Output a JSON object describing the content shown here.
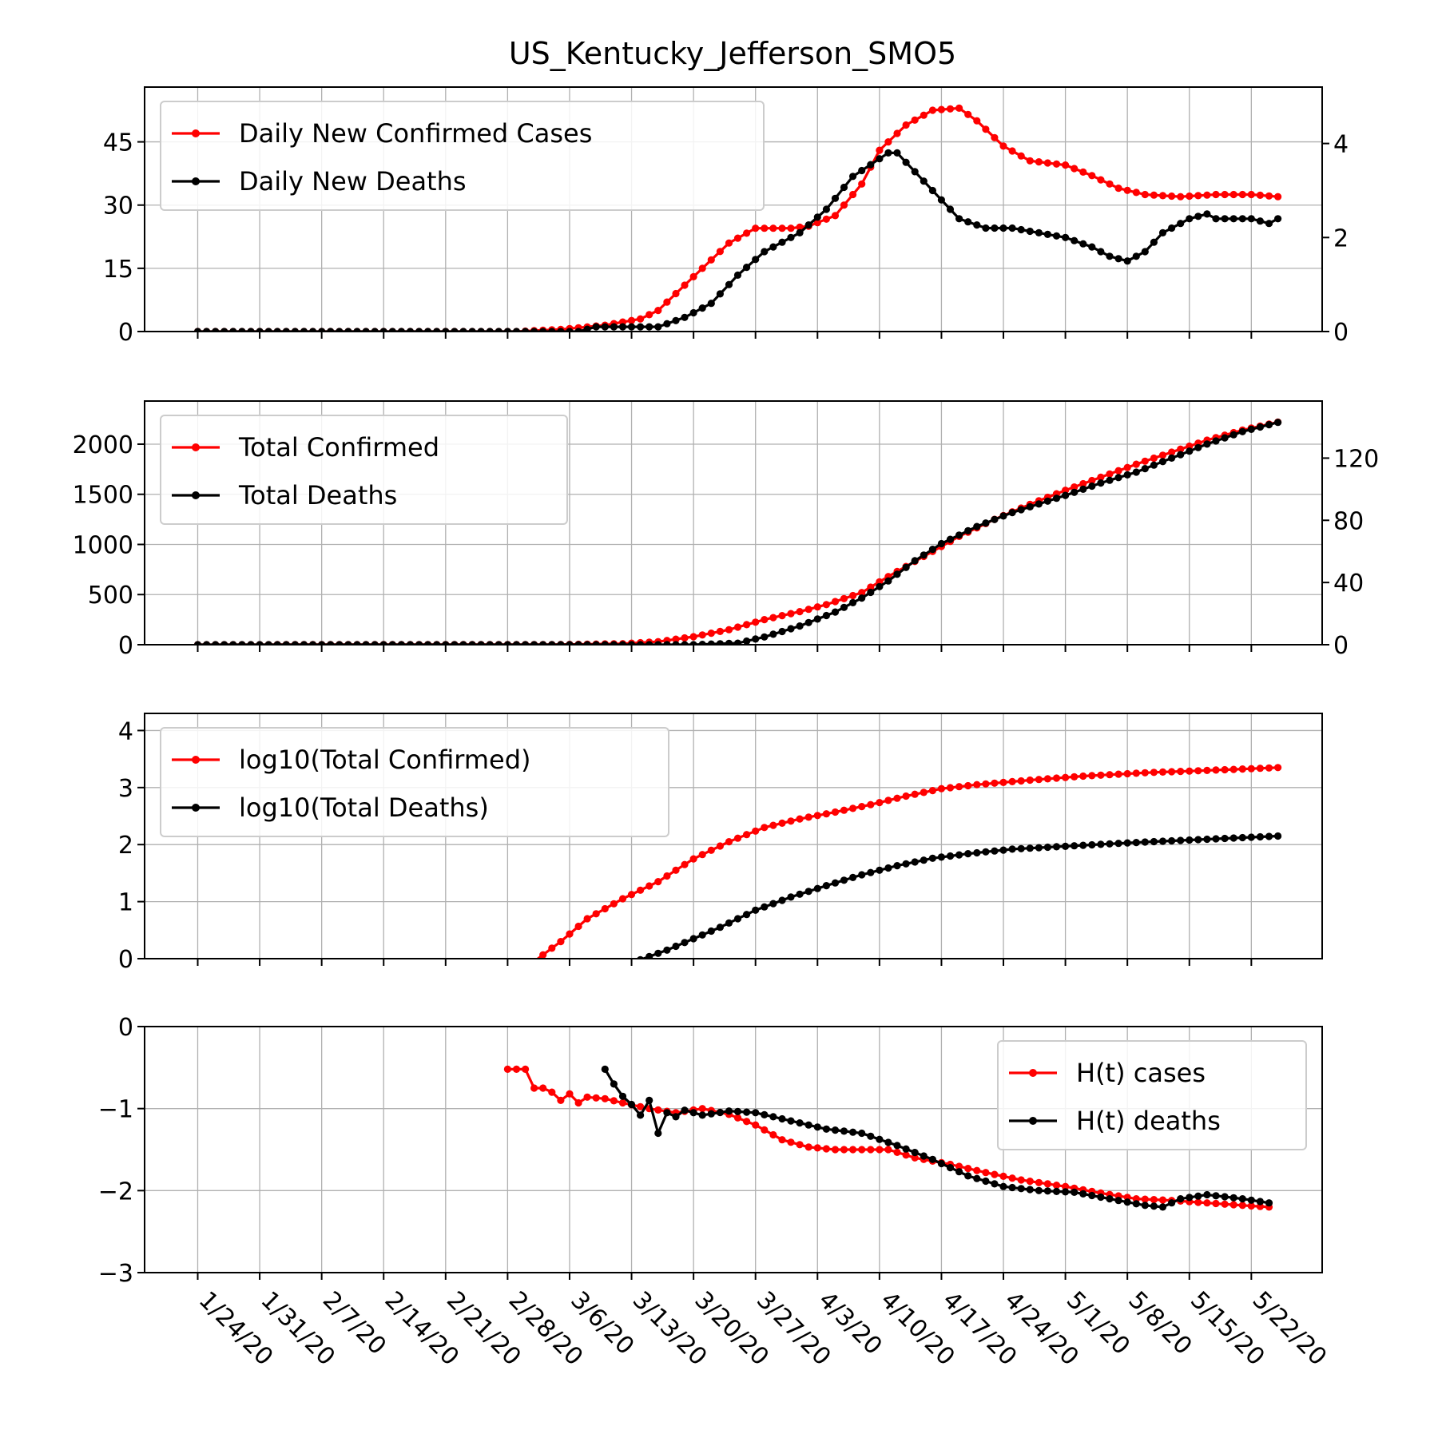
{
  "title": "US_Kentucky_Jefferson_SMO5",
  "colors": {
    "cases": "#ff0000",
    "deaths": "#000000",
    "grid": "#b0b0b0"
  },
  "x_ticks": [
    "1/24/20",
    "1/31/20",
    "2/7/20",
    "2/14/20",
    "2/21/20",
    "2/28/20",
    "3/6/20",
    "3/13/20",
    "3/20/20",
    "3/27/20",
    "4/3/20",
    "4/10/20",
    "4/17/20",
    "4/24/20",
    "5/1/20",
    "5/8/20",
    "5/15/20",
    "5/22/20"
  ],
  "chart_data": [
    {
      "type": "line",
      "x_range": [
        "1/18/20",
        "5/30/20"
      ],
      "x_start": "1/24/20",
      "x_end": "5/25/20",
      "y_left": {
        "lim": [
          0,
          58
        ],
        "ticks": [
          0,
          15,
          30,
          45
        ]
      },
      "y_right": {
        "lim": [
          0,
          5.2
        ],
        "ticks": [
          0,
          2,
          4
        ]
      },
      "legend_position": "upper-left",
      "series": [
        {
          "name": "Daily New Confirmed Cases",
          "axis": "left",
          "color": "#ff0000",
          "points": [
            [
              "1/24/20",
              0
            ],
            [
              "2/29/20",
              0
            ],
            [
              "3/5/20",
              0.5
            ],
            [
              "3/10/20",
              1.5
            ],
            [
              "3/14/20",
              3
            ],
            [
              "3/16/20",
              5
            ],
            [
              "3/18/20",
              9
            ],
            [
              "3/21/20",
              15
            ],
            [
              "3/24/20",
              21
            ],
            [
              "3/27/20",
              24.5
            ],
            [
              "3/31/20",
              24.5
            ],
            [
              "4/2/20",
              25
            ],
            [
              "4/5/20",
              27.5
            ],
            [
              "4/8/20",
              35
            ],
            [
              "4/10/20",
              43
            ],
            [
              "4/13/20",
              49
            ],
            [
              "4/16/20",
              52.5
            ],
            [
              "4/19/20",
              53
            ],
            [
              "4/21/20",
              50
            ],
            [
              "4/24/20",
              44
            ],
            [
              "4/27/20",
              40.5
            ],
            [
              "5/1/20",
              39.5
            ],
            [
              "5/4/20",
              37
            ],
            [
              "5/7/20",
              34
            ],
            [
              "5/10/20",
              32.5
            ],
            [
              "5/14/20",
              32
            ],
            [
              "5/18/20",
              32.5
            ],
            [
              "5/22/20",
              32.5
            ],
            [
              "5/25/20",
              32
            ]
          ]
        },
        {
          "name": "Daily New Deaths",
          "axis": "right",
          "color": "#000000",
          "points": [
            [
              "1/24/20",
              0
            ],
            [
              "3/7/20",
              0
            ],
            [
              "3/9/20",
              0.1
            ],
            [
              "3/16/20",
              0.1
            ],
            [
              "3/19/20",
              0.3
            ],
            [
              "3/22/20",
              0.6
            ],
            [
              "3/25/20",
              1.2
            ],
            [
              "3/28/20",
              1.7
            ],
            [
              "4/1/20",
              2.1
            ],
            [
              "4/4/20",
              2.6
            ],
            [
              "4/7/20",
              3.3
            ],
            [
              "4/11/20",
              3.8
            ],
            [
              "4/12/20",
              3.8
            ],
            [
              "4/14/20",
              3.4
            ],
            [
              "4/17/20",
              2.8
            ],
            [
              "4/19/20",
              2.4
            ],
            [
              "4/22/20",
              2.2
            ],
            [
              "4/25/20",
              2.2
            ],
            [
              "4/28/20",
              2.1
            ],
            [
              "5/1/20",
              2.0
            ],
            [
              "5/4/20",
              1.8
            ],
            [
              "5/6/20",
              1.6
            ],
            [
              "5/8/20",
              1.5
            ],
            [
              "5/10/20",
              1.7
            ],
            [
              "5/12/20",
              2.1
            ],
            [
              "5/15/20",
              2.4
            ],
            [
              "5/17/20",
              2.5
            ],
            [
              "5/18/20",
              2.4
            ],
            [
              "5/22/20",
              2.4
            ],
            [
              "5/24/20",
              2.3
            ],
            [
              "5/25/20",
              2.4
            ]
          ]
        }
      ]
    },
    {
      "type": "line",
      "x_range": [
        "1/18/20",
        "5/30/20"
      ],
      "x_start": "1/24/20",
      "x_end": "5/25/20",
      "y_left": {
        "lim": [
          0,
          2430
        ],
        "ticks": [
          0,
          500,
          1000,
          1500,
          2000
        ]
      },
      "y_right": {
        "lim": [
          0,
          156.7
        ],
        "ticks": [
          0,
          40,
          80,
          120
        ]
      },
      "legend_position": "upper-left",
      "series": [
        {
          "name": "Total Confirmed",
          "axis": "left",
          "color": "#ff0000",
          "points": [
            [
              "1/24/20",
              0
            ],
            [
              "3/5/20",
              2
            ],
            [
              "3/12/20",
              10
            ],
            [
              "3/16/20",
              30
            ],
            [
              "3/20/20",
              80
            ],
            [
              "3/24/20",
              150
            ],
            [
              "3/28/20",
              250
            ],
            [
              "4/1/20",
              330
            ],
            [
              "4/4/20",
              400
            ],
            [
              "4/8/20",
              520
            ],
            [
              "4/11/20",
              680
            ],
            [
              "4/15/20",
              880
            ],
            [
              "4/19/20",
              1080
            ],
            [
              "4/23/20",
              1250
            ],
            [
              "4/27/20",
              1400
            ],
            [
              "5/1/20",
              1540
            ],
            [
              "5/5/20",
              1670
            ],
            [
              "5/9/20",
              1800
            ],
            [
              "5/13/20",
              1920
            ],
            [
              "5/17/20",
              2040
            ],
            [
              "5/21/20",
              2140
            ],
            [
              "5/25/20",
              2220
            ]
          ]
        },
        {
          "name": "Total Deaths",
          "axis": "right",
          "color": "#000000",
          "points": [
            [
              "1/24/20",
              0
            ],
            [
              "3/20/20",
              0
            ],
            [
              "3/25/20",
              1
            ],
            [
              "3/28/20",
              5
            ],
            [
              "4/1/20",
              12
            ],
            [
              "4/5/20",
              21
            ],
            [
              "4/8/20",
              30
            ],
            [
              "4/11/20",
              41
            ],
            [
              "4/14/20",
              54
            ],
            [
              "4/17/20",
              65
            ],
            [
              "4/21/20",
              76
            ],
            [
              "4/25/20",
              85
            ],
            [
              "5/1/20",
              96
            ],
            [
              "5/5/20",
              104
            ],
            [
              "5/9/20",
              111
            ],
            [
              "5/13/20",
              120
            ],
            [
              "5/17/20",
              129
            ],
            [
              "5/21/20",
              137
            ],
            [
              "5/25/20",
              143
            ]
          ]
        }
      ]
    },
    {
      "type": "line",
      "x_range": [
        "1/18/20",
        "5/30/20"
      ],
      "x_start": "1/24/20",
      "x_end": "5/25/20",
      "y_left": {
        "lim": [
          0,
          4.3
        ],
        "ticks": [
          0,
          1,
          2,
          3,
          4
        ]
      },
      "legend_position": "upper-left",
      "series": [
        {
          "name": "log10(Total Confirmed)",
          "axis": "left",
          "color": "#ff0000",
          "points": [
            [
              "3/2/20",
              -0.05
            ],
            [
              "3/5/20",
              0.3
            ],
            [
              "3/8/20",
              0.7
            ],
            [
              "3/12/20",
              1.05
            ],
            [
              "3/16/20",
              1.35
            ],
            [
              "3/20/20",
              1.75
            ],
            [
              "3/24/20",
              2.05
            ],
            [
              "3/28/20",
              2.3
            ],
            [
              "4/1/20",
              2.45
            ],
            [
              "4/5/20",
              2.57
            ],
            [
              "4/9/20",
              2.7
            ],
            [
              "4/13/20",
              2.85
            ],
            [
              "4/17/20",
              2.98
            ],
            [
              "4/21/20",
              3.05
            ],
            [
              "4/27/20",
              3.13
            ],
            [
              "5/3/20",
              3.2
            ],
            [
              "5/10/20",
              3.26
            ],
            [
              "5/17/20",
              3.3
            ],
            [
              "5/25/20",
              3.35
            ]
          ]
        },
        {
          "name": "log10(Total Deaths)",
          "axis": "left",
          "color": "#000000",
          "points": [
            [
              "3/14/20",
              -0.02
            ],
            [
              "3/17/20",
              0.15
            ],
            [
              "3/20/20",
              0.35
            ],
            [
              "3/23/20",
              0.55
            ],
            [
              "3/27/20",
              0.85
            ],
            [
              "3/31/20",
              1.08
            ],
            [
              "4/4/20",
              1.28
            ],
            [
              "4/8/20",
              1.47
            ],
            [
              "4/12/20",
              1.63
            ],
            [
              "4/16/20",
              1.76
            ],
            [
              "4/20/20",
              1.84
            ],
            [
              "4/25/20",
              1.92
            ],
            [
              "5/1/20",
              1.97
            ],
            [
              "5/8/20",
              2.03
            ],
            [
              "5/15/20",
              2.08
            ],
            [
              "5/25/20",
              2.15
            ]
          ]
        }
      ]
    },
    {
      "type": "line",
      "x_range": [
        "1/18/20",
        "5/30/20"
      ],
      "x_start": "1/24/20",
      "x_end": "5/25/20",
      "y_left": {
        "lim": [
          -3,
          0
        ],
        "ticks": [
          -3,
          -2,
          -1,
          0
        ]
      },
      "legend_position": "upper-right",
      "series": [
        {
          "name": "H(t) cases",
          "axis": "left",
          "color": "#ff0000",
          "points": [
            [
              "2/28/20",
              -0.52
            ],
            [
              "3/1/20",
              -0.52
            ],
            [
              "3/2/20",
              -0.75
            ],
            [
              "3/3/20",
              -0.75
            ],
            [
              "3/4/20",
              -0.8
            ],
            [
              "3/5/20",
              -0.9
            ],
            [
              "3/6/20",
              -0.82
            ],
            [
              "3/7/20",
              -0.93
            ],
            [
              "3/8/20",
              -0.86
            ],
            [
              "3/10/20",
              -0.88
            ],
            [
              "3/12/20",
              -0.93
            ],
            [
              "3/15/20",
              -1.0
            ],
            [
              "3/18/20",
              -1.05
            ],
            [
              "3/21/20",
              -1.0
            ],
            [
              "3/24/20",
              -1.07
            ],
            [
              "3/27/20",
              -1.2
            ],
            [
              "3/30/20",
              -1.38
            ],
            [
              "4/2/20",
              -1.47
            ],
            [
              "4/5/20",
              -1.5
            ],
            [
              "4/8/20",
              -1.5
            ],
            [
              "4/11/20",
              -1.5
            ],
            [
              "4/14/20",
              -1.6
            ],
            [
              "4/18/20",
              -1.68
            ],
            [
              "4/22/20",
              -1.78
            ],
            [
              "4/26/20",
              -1.87
            ],
            [
              "5/1/20",
              -1.95
            ],
            [
              "5/5/20",
              -2.03
            ],
            [
              "5/9/20",
              -2.1
            ],
            [
              "5/13/20",
              -2.12
            ],
            [
              "5/17/20",
              -2.15
            ],
            [
              "5/21/20",
              -2.18
            ],
            [
              "5/24/20",
              -2.2
            ]
          ]
        },
        {
          "name": "H(t) deaths",
          "axis": "left",
          "color": "#000000",
          "points": [
            [
              "3/10/20",
              -0.52
            ],
            [
              "3/11/20",
              -0.7
            ],
            [
              "3/12/20",
              -0.85
            ],
            [
              "3/13/20",
              -0.95
            ],
            [
              "3/14/20",
              -1.08
            ],
            [
              "3/15/20",
              -0.9
            ],
            [
              "3/16/20",
              -1.3
            ],
            [
              "3/17/20",
              -1.05
            ],
            [
              "3/18/20",
              -1.1
            ],
            [
              "3/19/20",
              -1.02
            ],
            [
              "3/21/20",
              -1.08
            ],
            [
              "3/24/20",
              -1.03
            ],
            [
              "3/27/20",
              -1.05
            ],
            [
              "3/31/20",
              -1.15
            ],
            [
              "4/4/20",
              -1.25
            ],
            [
              "4/8/20",
              -1.3
            ],
            [
              "4/12/20",
              -1.45
            ],
            [
              "4/16/20",
              -1.62
            ],
            [
              "4/20/20",
              -1.82
            ],
            [
              "4/24/20",
              -1.95
            ],
            [
              "4/28/20",
              -2.0
            ],
            [
              "5/2/20",
              -2.02
            ],
            [
              "5/6/20",
              -2.1
            ],
            [
              "5/10/20",
              -2.18
            ],
            [
              "5/12/20",
              -2.2
            ],
            [
              "5/14/20",
              -2.1
            ],
            [
              "5/17/20",
              -2.05
            ],
            [
              "5/21/20",
              -2.1
            ],
            [
              "5/24/20",
              -2.15
            ]
          ]
        }
      ]
    }
  ]
}
